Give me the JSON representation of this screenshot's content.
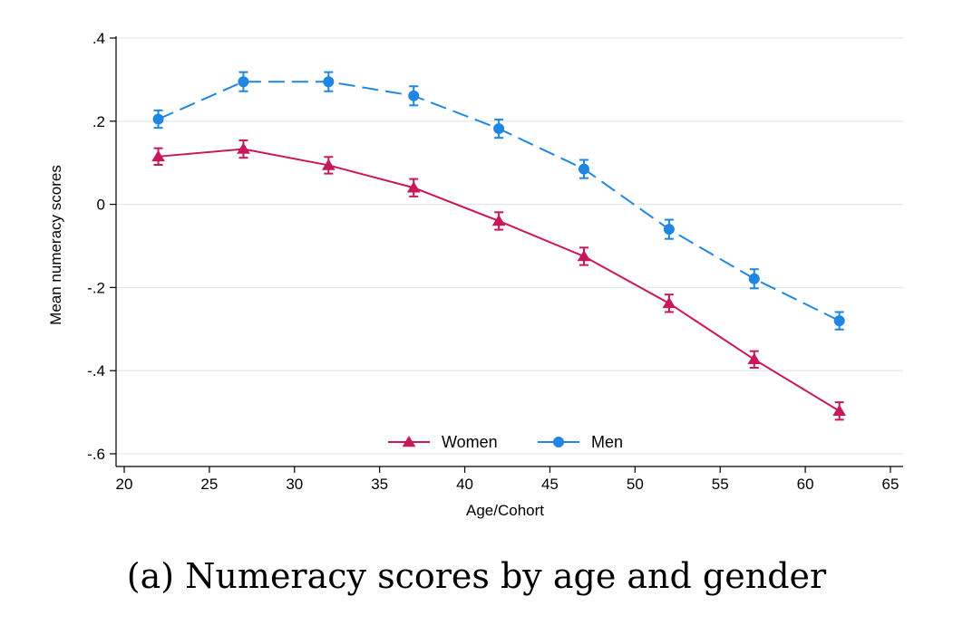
{
  "caption": "(a) Numeracy scores by age and gender",
  "chart_data": {
    "type": "line",
    "title": "",
    "xlabel": "Age/Cohort",
    "ylabel": "Mean numeracy scores",
    "xlim": [
      20,
      65
    ],
    "ylim": [
      -0.6,
      0.4
    ],
    "x_ticks": [
      20,
      25,
      30,
      35,
      40,
      45,
      50,
      55,
      60,
      65
    ],
    "x_tick_labels": [
      "20",
      "25",
      "30",
      "35",
      "40",
      "45",
      "50",
      "55",
      "60",
      "65"
    ],
    "y_ticks": [
      -0.6,
      -0.4,
      -0.2,
      0,
      0.2,
      0.4
    ],
    "y_tick_labels": [
      "-.6",
      "-.4",
      "-.2",
      "0",
      ".2",
      ".4"
    ],
    "grid": true,
    "legend_position": "bottom-center",
    "x": [
      22,
      27,
      32,
      37,
      42,
      47,
      52,
      57,
      62
    ],
    "series": [
      {
        "name": "Women",
        "color": "#c8175a",
        "marker": "triangle",
        "line_style": "solid",
        "values": [
          0.115,
          0.133,
          0.094,
          0.04,
          -0.04,
          -0.125,
          -0.238,
          -0.373,
          -0.497
        ],
        "ci_low": [
          0.095,
          0.112,
          0.074,
          0.019,
          -0.061,
          -0.146,
          -0.259,
          -0.393,
          -0.518
        ],
        "ci_high": [
          0.135,
          0.154,
          0.114,
          0.061,
          -0.019,
          -0.104,
          -0.217,
          -0.353,
          -0.476
        ]
      },
      {
        "name": "Men",
        "color": "#1f86e2",
        "marker": "circle",
        "line_style": "dashed",
        "values": [
          0.205,
          0.295,
          0.295,
          0.261,
          0.182,
          0.085,
          -0.06,
          -0.179,
          -0.28
        ],
        "ci_low": [
          0.184,
          0.272,
          0.272,
          0.238,
          0.16,
          0.063,
          -0.083,
          -0.202,
          -0.301
        ],
        "ci_high": [
          0.226,
          0.318,
          0.318,
          0.284,
          0.204,
          0.107,
          -0.037,
          -0.156,
          -0.259
        ]
      }
    ]
  }
}
